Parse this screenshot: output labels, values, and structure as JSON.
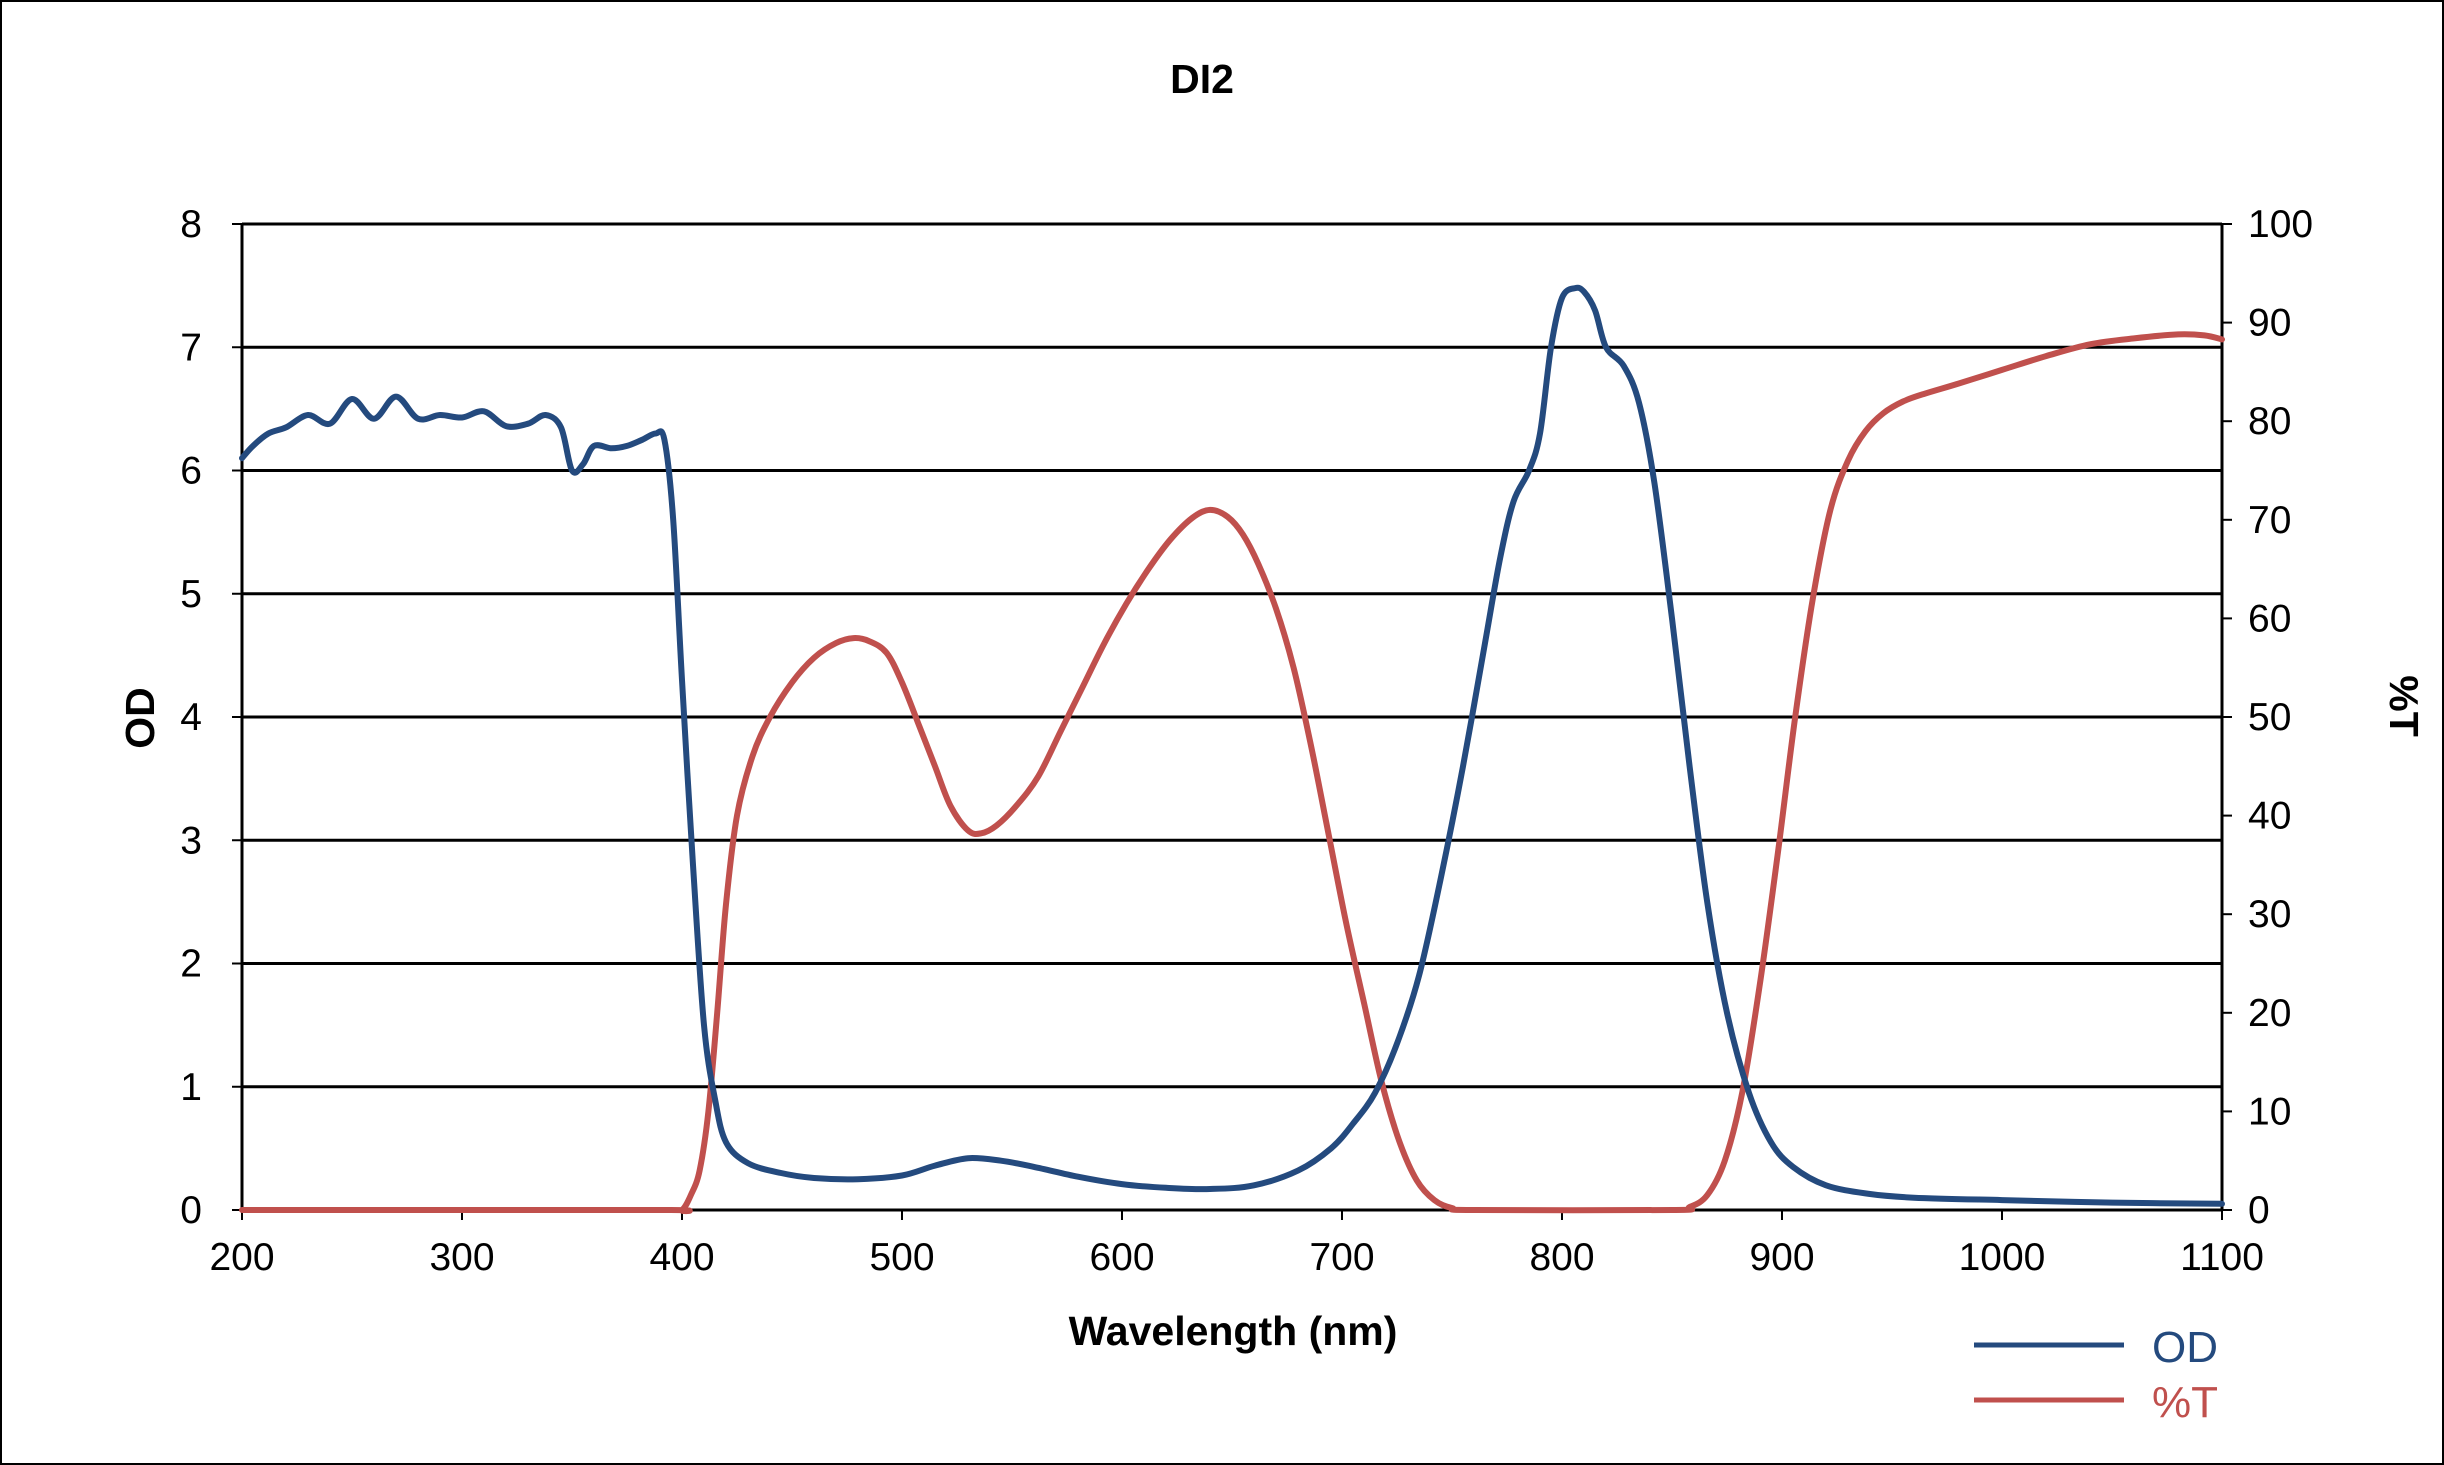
{
  "colors": {
    "od_line": "#244a7e",
    "t_line": "#c0504d",
    "axis": "#000000",
    "background": "#ffffff"
  },
  "chart_data": {
    "type": "line",
    "title": "DI2",
    "xlabel": "Wavelength (nm)",
    "ylabel": "OD",
    "y2label": "%T",
    "xlim": [
      200,
      1100
    ],
    "ylim": [
      0,
      8
    ],
    "y2lim": [
      0,
      100
    ],
    "x_ticks": [
      "200",
      "300",
      "400",
      "500",
      "600",
      "700",
      "800",
      "900",
      "1000",
      "1100"
    ],
    "y_ticks": [
      "0",
      "1",
      "2",
      "3",
      "4",
      "5",
      "6",
      "7",
      "8"
    ],
    "y2_ticks": [
      "0",
      "10",
      "20",
      "30",
      "40",
      "50",
      "60",
      "70",
      "80",
      "90",
      "100"
    ],
    "grid": "horizontal",
    "legend_position": "bottom-right",
    "series": [
      {
        "name": "OD",
        "axis": "left",
        "color": "#244a7e",
        "points": [
          [
            200,
            6.1
          ],
          [
            205,
            6.2
          ],
          [
            212,
            6.3
          ],
          [
            220,
            6.35
          ],
          [
            230,
            6.45
          ],
          [
            240,
            6.38
          ],
          [
            250,
            6.58
          ],
          [
            260,
            6.42
          ],
          [
            270,
            6.6
          ],
          [
            280,
            6.42
          ],
          [
            290,
            6.45
          ],
          [
            300,
            6.43
          ],
          [
            310,
            6.48
          ],
          [
            320,
            6.36
          ],
          [
            330,
            6.38
          ],
          [
            338,
            6.45
          ],
          [
            345,
            6.35
          ],
          [
            350,
            6.0
          ],
          [
            355,
            6.05
          ],
          [
            360,
            6.2
          ],
          [
            368,
            6.18
          ],
          [
            375,
            6.2
          ],
          [
            382,
            6.25
          ],
          [
            388,
            6.3
          ],
          [
            392,
            6.25
          ],
          [
            396,
            5.6
          ],
          [
            400,
            4.3
          ],
          [
            405,
            2.8
          ],
          [
            410,
            1.5
          ],
          [
            415,
            0.9
          ],
          [
            420,
            0.55
          ],
          [
            430,
            0.38
          ],
          [
            445,
            0.3
          ],
          [
            460,
            0.26
          ],
          [
            480,
            0.25
          ],
          [
            500,
            0.28
          ],
          [
            515,
            0.36
          ],
          [
            530,
            0.42
          ],
          [
            545,
            0.4
          ],
          [
            560,
            0.35
          ],
          [
            580,
            0.27
          ],
          [
            600,
            0.21
          ],
          [
            620,
            0.18
          ],
          [
            640,
            0.17
          ],
          [
            660,
            0.2
          ],
          [
            680,
            0.32
          ],
          [
            695,
            0.5
          ],
          [
            705,
            0.7
          ],
          [
            715,
            0.95
          ],
          [
            725,
            1.35
          ],
          [
            735,
            1.9
          ],
          [
            745,
            2.7
          ],
          [
            755,
            3.6
          ],
          [
            765,
            4.6
          ],
          [
            772,
            5.3
          ],
          [
            778,
            5.75
          ],
          [
            785,
            6.0
          ],
          [
            790,
            6.3
          ],
          [
            795,
            7.0
          ],
          [
            800,
            7.4
          ],
          [
            806,
            7.48
          ],
          [
            810,
            7.45
          ],
          [
            815,
            7.3
          ],
          [
            820,
            7.0
          ],
          [
            828,
            6.85
          ],
          [
            835,
            6.55
          ],
          [
            842,
            5.9
          ],
          [
            850,
            4.8
          ],
          [
            858,
            3.6
          ],
          [
            866,
            2.5
          ],
          [
            875,
            1.6
          ],
          [
            885,
            0.95
          ],
          [
            895,
            0.55
          ],
          [
            905,
            0.35
          ],
          [
            920,
            0.2
          ],
          [
            940,
            0.13
          ],
          [
            960,
            0.1
          ],
          [
            1000,
            0.08
          ],
          [
            1050,
            0.06
          ],
          [
            1100,
            0.05
          ]
        ]
      },
      {
        "name": "%T",
        "axis": "right",
        "color": "#c0504d",
        "points": [
          [
            200,
            0
          ],
          [
            300,
            0
          ],
          [
            395,
            0
          ],
          [
            400,
            0
          ],
          [
            404,
            1.5
          ],
          [
            408,
            4
          ],
          [
            412,
            10
          ],
          [
            416,
            20
          ],
          [
            420,
            31
          ],
          [
            425,
            40
          ],
          [
            432,
            46
          ],
          [
            440,
            50
          ],
          [
            450,
            53.5
          ],
          [
            460,
            56
          ],
          [
            470,
            57.5
          ],
          [
            478,
            58
          ],
          [
            485,
            57.7
          ],
          [
            493,
            56.5
          ],
          [
            500,
            53.5
          ],
          [
            508,
            49
          ],
          [
            515,
            45
          ],
          [
            522,
            41
          ],
          [
            530,
            38.5
          ],
          [
            536,
            38.2
          ],
          [
            543,
            39
          ],
          [
            552,
            41
          ],
          [
            562,
            44
          ],
          [
            572,
            48.5
          ],
          [
            582,
            53
          ],
          [
            592,
            57.5
          ],
          [
            602,
            61.5
          ],
          [
            612,
            65
          ],
          [
            622,
            68
          ],
          [
            632,
            70.2
          ],
          [
            640,
            71
          ],
          [
            648,
            70.3
          ],
          [
            655,
            68.5
          ],
          [
            662,
            65.5
          ],
          [
            670,
            61
          ],
          [
            678,
            55
          ],
          [
            686,
            47
          ],
          [
            694,
            38
          ],
          [
            702,
            29
          ],
          [
            710,
            21
          ],
          [
            718,
            13
          ],
          [
            726,
            7
          ],
          [
            734,
            3
          ],
          [
            742,
            1
          ],
          [
            750,
            0.2
          ],
          [
            760,
            0
          ],
          [
            850,
            0
          ],
          [
            858,
            0.3
          ],
          [
            866,
            1.5
          ],
          [
            874,
            5
          ],
          [
            882,
            12
          ],
          [
            890,
            23
          ],
          [
            898,
            36
          ],
          [
            906,
            50
          ],
          [
            914,
            62
          ],
          [
            922,
            71
          ],
          [
            930,
            76
          ],
          [
            938,
            79
          ],
          [
            946,
            80.8
          ],
          [
            955,
            82
          ],
          [
            965,
            82.8
          ],
          [
            980,
            83.8
          ],
          [
            1000,
            85.2
          ],
          [
            1020,
            86.6
          ],
          [
            1040,
            87.8
          ],
          [
            1060,
            88.4
          ],
          [
            1080,
            88.8
          ],
          [
            1092,
            88.7
          ],
          [
            1100,
            88.3
          ]
        ]
      }
    ]
  }
}
